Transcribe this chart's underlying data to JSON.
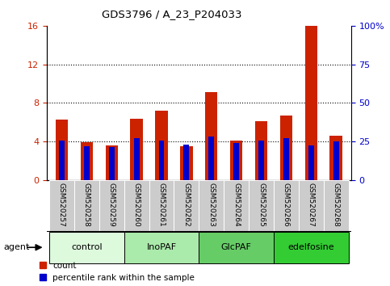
{
  "title": "GDS3796 / A_23_P204033",
  "samples": [
    "GSM520257",
    "GSM520258",
    "GSM520259",
    "GSM520260",
    "GSM520261",
    "GSM520262",
    "GSM520263",
    "GSM520264",
    "GSM520265",
    "GSM520266",
    "GSM520267",
    "GSM520268"
  ],
  "count_values": [
    6.3,
    3.9,
    3.6,
    6.4,
    7.2,
    3.55,
    9.1,
    4.1,
    6.1,
    6.7,
    16.0,
    4.6
  ],
  "percentile_values": [
    25.5,
    22.0,
    21.5,
    27.0,
    25.5,
    23.0,
    28.0,
    24.0,
    25.5,
    27.0,
    22.5,
    25.0
  ],
  "count_color": "#cc2200",
  "percentile_color": "#0000cc",
  "ylim_left": [
    0,
    16
  ],
  "ylim_right": [
    0,
    100
  ],
  "yticks_left": [
    0,
    4,
    8,
    12,
    16
  ],
  "yticks_right": [
    0,
    25,
    50,
    75,
    100
  ],
  "ytick_labels_right": [
    "0",
    "25",
    "50",
    "75",
    "100%"
  ],
  "groups": [
    {
      "label": "control",
      "start": 0,
      "end": 3,
      "color": "#ddfadd"
    },
    {
      "label": "InoPAF",
      "start": 3,
      "end": 6,
      "color": "#aaeaaa"
    },
    {
      "label": "GlcPAF",
      "start": 6,
      "end": 9,
      "color": "#66cc66"
    },
    {
      "label": "edelfosine",
      "start": 9,
      "end": 12,
      "color": "#33cc33"
    }
  ],
  "bar_width": 0.5,
  "pct_bar_width": 0.22,
  "tick_bg_color": "#cccccc",
  "legend_count": "count",
  "legend_pct": "percentile rank within the sample",
  "dotted_yticks": [
    4,
    8,
    12
  ]
}
